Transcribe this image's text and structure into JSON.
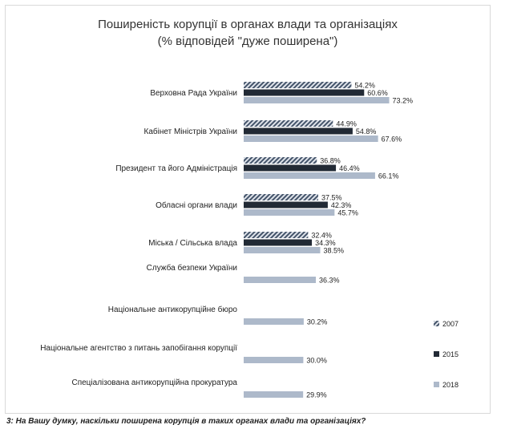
{
  "chart_data": {
    "type": "bar",
    "orientation": "horizontal",
    "title": "Поширеність корупції в органах влади та організаціях",
    "subtitle": "(% відповідей \"дуже поширена\")",
    "categories": [
      "Верховна Рада України",
      "Кабінет Міністрів України",
      "Президент та його Адміністрація",
      "Обласні органи влади",
      "Міська / Сільська влада",
      "Служба безпеки України",
      "Національне антикорупційне бюро",
      "Національне агентство з питань запобігання корупції",
      "Спеціалізована антикорупційна прокуратура"
    ],
    "series": [
      {
        "name": "2007",
        "color": "#44546a",
        "pattern": "diagonal-hatch",
        "values": [
          54.2,
          44.9,
          36.8,
          37.5,
          32.4,
          null,
          null,
          null,
          null
        ],
        "labels": [
          "54.2%",
          "44.9%",
          "36.8%",
          "37.5%",
          "32.4%",
          null,
          null,
          null,
          null
        ]
      },
      {
        "name": "2015",
        "color": "#222a35",
        "values": [
          60.6,
          54.8,
          46.4,
          42.3,
          34.3,
          null,
          null,
          null,
          null
        ],
        "labels": [
          "60.6%",
          "54.8%",
          "46.4%",
          "42.3%",
          "34.3%",
          null,
          null,
          null,
          null
        ]
      },
      {
        "name": "2018",
        "color": "#adb9ca",
        "values": [
          73.2,
          67.6,
          66.1,
          45.7,
          38.5,
          36.3,
          30.2,
          30.0,
          29.9
        ],
        "labels": [
          "73.2%",
          "67.6%",
          "66.1%",
          "45.7%",
          "38.5%",
          "36.3%",
          "30.2%",
          "30.0%",
          "29.9%"
        ]
      }
    ],
    "xlim": [
      0,
      100
    ],
    "grid": false,
    "legend_position": "right"
  },
  "footnote": "3: На Вашу думку, наскільки поширена корупція в таких органах влади та організаціях?"
}
